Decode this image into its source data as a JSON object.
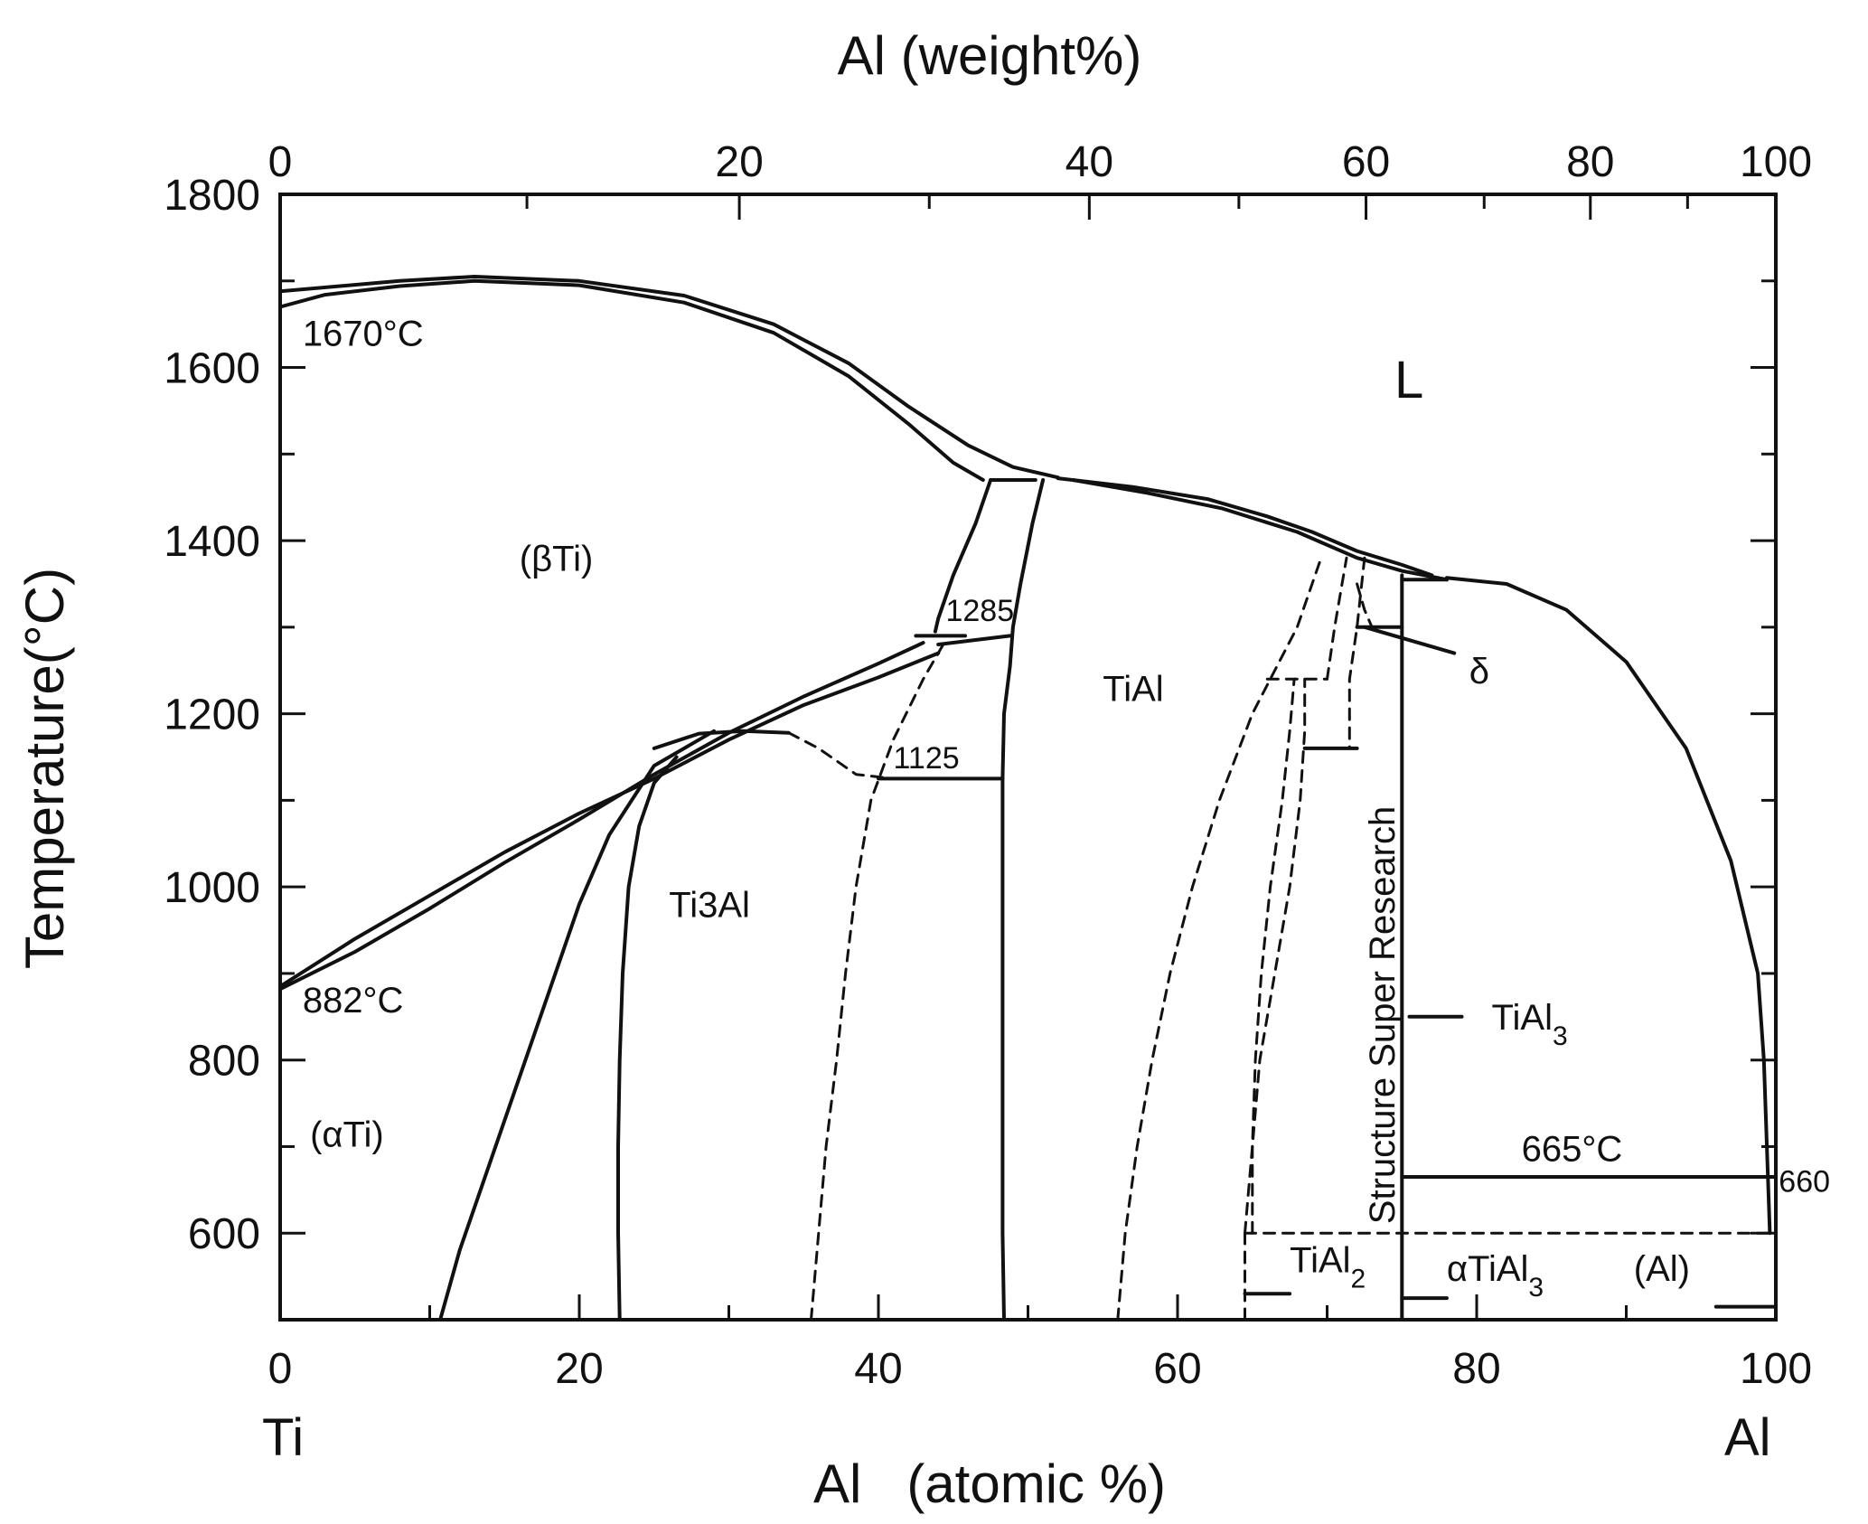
{
  "chart_data": {
    "type": "line",
    "xlabel": "Al   (atomic %)",
    "x2label": "Al (weight%)",
    "ylabel": "Temperature(°C)",
    "xlim": [
      0,
      100
    ],
    "ylim": [
      500,
      1800
    ],
    "x_ticks": [
      0,
      20,
      40,
      60,
      80,
      100
    ],
    "x_ticks_minor": [
      10,
      30,
      50,
      70,
      90
    ],
    "y_ticks": [
      600,
      800,
      1000,
      1200,
      1400,
      1600,
      1800
    ],
    "y_ticks_minor": [
      700,
      900,
      1100,
      1300,
      1500,
      1700
    ],
    "x2_ticks": [
      0,
      20,
      40,
      60,
      80,
      100
    ],
    "x2_tick_positions_at": [
      0,
      30.7,
      54.1,
      72.6,
      87.6,
      100
    ],
    "x2_ticks_minor_at": [
      16.5,
      43.4,
      64.1,
      80.5,
      94.1
    ],
    "x_end_labels": {
      "left": "Ti",
      "right": "Al"
    },
    "grid": false,
    "annotations": [
      {
        "text": "1670°C",
        "x": 1.5,
        "y": 1625
      },
      {
        "text": "L",
        "x": 74.5,
        "y": 1565
      },
      {
        "text": "(βTi)",
        "x": 16,
        "y": 1365
      },
      {
        "text": "1285",
        "x": 44.5,
        "y": 1307
      },
      {
        "text": "TiAl",
        "x": 55,
        "y": 1215
      },
      {
        "text": "δ",
        "x": 79.5,
        "y": 1235
      },
      {
        "text": "1125",
        "x": 41,
        "y": 1137
      },
      {
        "text": "Ti3Al",
        "x": 26,
        "y": 965
      },
      {
        "text": "882°C",
        "x": 1.5,
        "y": 855
      },
      {
        "text": "TiAl3",
        "x": 81,
        "y": 835
      },
      {
        "text": "(αTi)",
        "x": 2,
        "y": 700
      },
      {
        "text": "665°C",
        "x": 83,
        "y": 683
      },
      {
        "text": "660",
        "x": 100.2,
        "y": 648
      },
      {
        "text": "TiAl2",
        "x": 67.5,
        "y": 555
      },
      {
        "text": "αTiAl3",
        "x": 78,
        "y": 545
      },
      {
        "text": "(Al)",
        "x": 90.5,
        "y": 545
      },
      {
        "text": "Structure Super Research",
        "x": 73,
        "y": 860
      }
    ],
    "series": [
      {
        "style": "solid",
        "points": [
          [
            0,
            1670
          ],
          [
            3,
            1684
          ],
          [
            8,
            1694
          ],
          [
            13,
            1700
          ],
          [
            20,
            1695
          ],
          [
            27,
            1675
          ],
          [
            33,
            1640
          ],
          [
            38,
            1590
          ],
          [
            42,
            1535
          ],
          [
            45,
            1490
          ],
          [
            47,
            1470
          ]
        ]
      },
      {
        "style": "solid",
        "points": [
          [
            0,
            1688
          ],
          [
            8,
            1700
          ],
          [
            13,
            1705
          ],
          [
            20,
            1700
          ],
          [
            27,
            1683
          ],
          [
            33,
            1650
          ],
          [
            38,
            1605
          ],
          [
            42,
            1555
          ],
          [
            46,
            1510
          ],
          [
            49,
            1485
          ],
          [
            52,
            1473
          ]
        ]
      },
      {
        "style": "solid",
        "points": [
          [
            47.5,
            1470
          ],
          [
            50.5,
            1470
          ]
        ]
      },
      {
        "style": "solid",
        "points": [
          [
            53,
            1470
          ],
          [
            58,
            1455
          ],
          [
            63,
            1437
          ],
          [
            68,
            1410
          ],
          [
            72,
            1380
          ],
          [
            75,
            1365
          ],
          [
            78,
            1355
          ]
        ]
      },
      {
        "style": "solid",
        "points": [
          [
            52,
            1472
          ],
          [
            57,
            1462
          ],
          [
            62,
            1448
          ],
          [
            66,
            1428
          ],
          [
            69,
            1410
          ],
          [
            72,
            1388
          ],
          [
            75,
            1372
          ],
          [
            77,
            1360
          ]
        ]
      },
      {
        "style": "solid",
        "points": [
          [
            78,
            1357
          ],
          [
            82,
            1350
          ],
          [
            86,
            1320
          ],
          [
            90,
            1260
          ],
          [
            94,
            1160
          ],
          [
            97,
            1030
          ],
          [
            98.8,
            900
          ],
          [
            99.2,
            800
          ],
          [
            99.4,
            700
          ],
          [
            99.6,
            600
          ]
        ]
      },
      {
        "style": "solid",
        "points": [
          [
            47.5,
            1470
          ],
          [
            46.5,
            1420
          ],
          [
            45,
            1360
          ],
          [
            44,
            1310
          ],
          [
            43.8,
            1295
          ]
        ]
      },
      {
        "style": "solid",
        "points": [
          [
            51,
            1470
          ],
          [
            50.3,
            1420
          ],
          [
            49.5,
            1350
          ],
          [
            49,
            1300
          ],
          [
            48.8,
            1255
          ],
          [
            48.4,
            1200
          ],
          [
            48.3,
            1125
          ]
        ]
      },
      {
        "style": "solid",
        "points": [
          [
            48.3,
            1125
          ],
          [
            48.3,
            1000
          ],
          [
            48.3,
            800
          ],
          [
            48.3,
            600
          ],
          [
            48.4,
            500
          ]
        ]
      },
      {
        "style": "solid",
        "points": [
          [
            0,
            885
          ],
          [
            5,
            940
          ],
          [
            10,
            990
          ],
          [
            15,
            1040
          ],
          [
            20,
            1085
          ],
          [
            25,
            1125
          ],
          [
            30,
            1170
          ],
          [
            35,
            1210
          ],
          [
            40,
            1242
          ],
          [
            44,
            1270
          ]
        ]
      },
      {
        "style": "solid",
        "points": [
          [
            0,
            882
          ],
          [
            5,
            925
          ],
          [
            10,
            975
          ],
          [
            15,
            1028
          ],
          [
            20,
            1078
          ],
          [
            25,
            1130
          ],
          [
            30,
            1178
          ],
          [
            35,
            1220
          ],
          [
            40,
            1258
          ],
          [
            43,
            1282
          ]
        ]
      },
      {
        "style": "solid",
        "points": [
          [
            44,
            1280
          ],
          [
            48.8,
            1290
          ]
        ]
      },
      {
        "style": "solid",
        "points": [
          [
            42.5,
            1290
          ],
          [
            45.8,
            1290
          ]
        ]
      },
      {
        "style": "solid",
        "points": [
          [
            25,
            1160
          ],
          [
            28,
            1177
          ],
          [
            31,
            1180
          ],
          [
            34,
            1178
          ]
        ]
      },
      {
        "style": "solid",
        "points": [
          [
            40,
            1125
          ],
          [
            48.3,
            1125
          ]
        ]
      },
      {
        "style": "solid",
        "points": [
          [
            10.7,
            500
          ],
          [
            12,
            580
          ],
          [
            14,
            680
          ],
          [
            16,
            780
          ],
          [
            18,
            880
          ],
          [
            20,
            980
          ],
          [
            22,
            1060
          ],
          [
            25,
            1140
          ],
          [
            29,
            1180
          ]
        ]
      },
      {
        "style": "solid",
        "points": [
          [
            22.7,
            500
          ],
          [
            22.6,
            600
          ],
          [
            22.6,
            700
          ],
          [
            22.7,
            800
          ],
          [
            22.9,
            900
          ],
          [
            23.3,
            1000
          ],
          [
            24,
            1070
          ],
          [
            25,
            1120
          ],
          [
            26.5,
            1150
          ]
        ]
      },
      {
        "style": "dash",
        "points": [
          [
            34,
            1178
          ],
          [
            36,
            1160
          ],
          [
            38.5,
            1130
          ],
          [
            41,
            1125
          ]
        ]
      },
      {
        "style": "dash",
        "points": [
          [
            35.5,
            500
          ],
          [
            36,
            600
          ],
          [
            36.5,
            700
          ],
          [
            37.2,
            800
          ],
          [
            37.8,
            900
          ],
          [
            38.5,
            1000
          ],
          [
            39.5,
            1100
          ],
          [
            41,
            1170
          ],
          [
            43,
            1240
          ],
          [
            44.5,
            1285
          ]
        ]
      },
      {
        "style": "dash",
        "points": [
          [
            56,
            500
          ],
          [
            56.5,
            600
          ],
          [
            57.3,
            700
          ],
          [
            58.3,
            800
          ],
          [
            59.5,
            900
          ],
          [
            61,
            1000
          ],
          [
            62.8,
            1100
          ],
          [
            65,
            1200
          ],
          [
            68,
            1300
          ],
          [
            69.5,
            1375
          ]
        ]
      },
      {
        "style": "dash",
        "points": [
          [
            65,
            600
          ],
          [
            65,
            700
          ],
          [
            65.2,
            800
          ],
          [
            65.6,
            900
          ],
          [
            66.2,
            1000
          ],
          [
            67,
            1100
          ],
          [
            67.5,
            1180
          ],
          [
            67.8,
            1240
          ]
        ]
      },
      {
        "style": "dash",
        "points": [
          [
            64.5,
            600
          ],
          [
            65,
            700
          ],
          [
            65.5,
            800
          ],
          [
            66.5,
            900
          ],
          [
            67.5,
            1000
          ],
          [
            68.2,
            1100
          ],
          [
            68.5,
            1180
          ],
          [
            68.5,
            1240
          ]
        ]
      },
      {
        "style": "dash",
        "points": [
          [
            66,
            1240
          ],
          [
            70,
            1240
          ]
        ]
      },
      {
        "style": "dash",
        "points": [
          [
            70,
            1240
          ],
          [
            70.5,
            1300
          ],
          [
            71,
            1350
          ],
          [
            71.3,
            1380
          ]
        ]
      },
      {
        "style": "dash",
        "points": [
          [
            72.5,
            1380
          ],
          [
            72,
            1300
          ],
          [
            71.5,
            1240
          ],
          [
            71.5,
            1160
          ]
        ]
      },
      {
        "style": "solid",
        "points": [
          [
            68.5,
            1160
          ],
          [
            72,
            1160
          ]
        ]
      },
      {
        "style": "dash",
        "points": [
          [
            72,
            1350
          ],
          [
            72.5,
            1320
          ],
          [
            73,
            1300
          ]
        ]
      },
      {
        "style": "solid",
        "points": [
          [
            72,
            1300
          ],
          [
            75,
            1300
          ]
        ]
      },
      {
        "style": "solid",
        "points": [
          [
            75,
            500
          ],
          [
            75,
            1360
          ]
        ]
      },
      {
        "style": "solid",
        "points": [
          [
            75,
            1355
          ],
          [
            78,
            1355
          ]
        ]
      },
      {
        "style": "dash",
        "points": [
          [
            64.5,
            500
          ],
          [
            64.5,
            600
          ]
        ]
      },
      {
        "style": "dash",
        "points": [
          [
            64.5,
            600
          ],
          [
            100,
            600
          ]
        ]
      },
      {
        "style": "solid",
        "points": [
          [
            75,
            665
          ],
          [
            100,
            665
          ]
        ]
      },
      {
        "style": "solid",
        "points": [
          [
            64.5,
            530
          ],
          [
            67.5,
            530
          ]
        ]
      },
      {
        "style": "solid",
        "points": [
          [
            75,
            525
          ],
          [
            78,
            525
          ]
        ]
      },
      {
        "style": "solid",
        "points": [
          [
            96,
            515
          ],
          [
            100,
            515
          ]
        ]
      },
      {
        "style": "solid",
        "points": [
          [
            75.5,
            850
          ],
          [
            79,
            850
          ]
        ]
      },
      {
        "style": "solid",
        "points": [
          [
            72.5,
            1300
          ],
          [
            78.5,
            1270
          ]
        ]
      }
    ]
  }
}
